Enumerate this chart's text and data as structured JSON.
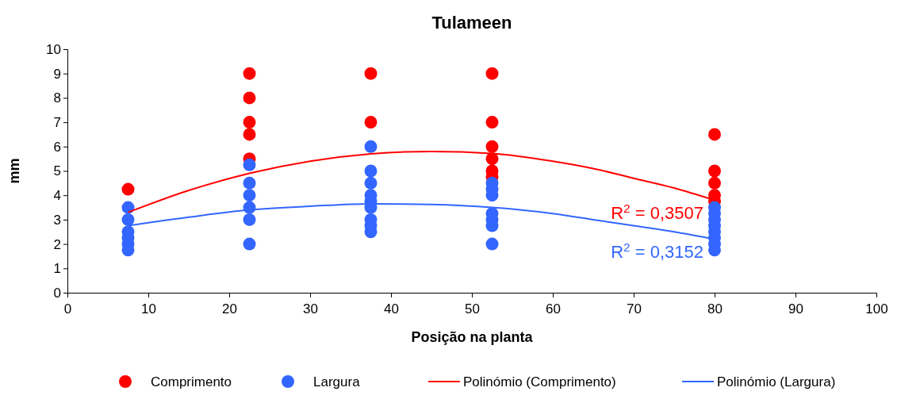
{
  "chart_data": {
    "type": "scatter",
    "title": "Tulameen",
    "xlabel": "Posição na planta",
    "ylabel": "mm",
    "xlim": [
      0,
      100
    ],
    "xticks": [
      0,
      10,
      20,
      30,
      40,
      50,
      60,
      70,
      80,
      90,
      100
    ],
    "ylim": [
      0,
      10
    ],
    "yticks": [
      0,
      1,
      2,
      3,
      4,
      5,
      6,
      7,
      8,
      9,
      10
    ],
    "legend": "bottom",
    "marker": "circle",
    "grid": false,
    "series": [
      {
        "name": "Comprimento",
        "color": "#ff0000",
        "x": [
          7.5,
          22.5,
          22.5,
          22.5,
          22.5,
          22.5,
          37.5,
          37.5,
          52.5,
          52.5,
          52.5,
          52.5,
          52.5,
          52.5,
          80,
          80,
          80,
          80,
          80
        ],
        "values": [
          4.25,
          9,
          8,
          7,
          6.5,
          5.5,
          9,
          7,
          9,
          7,
          6,
          5.5,
          5,
          4.75,
          6.5,
          5,
          4.5,
          4,
          3.75
        ]
      },
      {
        "name": "Largura",
        "color": "#3366ff",
        "x": [
          7.5,
          7.5,
          7.5,
          7.5,
          7.5,
          7.5,
          22.5,
          22.5,
          22.5,
          22.5,
          22.5,
          22.5,
          37.5,
          37.5,
          37.5,
          37.5,
          37.5,
          37.5,
          37.5,
          37.5,
          37.5,
          52.5,
          52.5,
          52.5,
          52.5,
          52.5,
          52.5,
          52.5,
          80,
          80,
          80,
          80,
          80,
          80,
          80,
          80
        ],
        "values": [
          3.5,
          3,
          2.5,
          2.25,
          2,
          1.75,
          5.25,
          4.5,
          4,
          3.5,
          3,
          2,
          6,
          5,
          4.5,
          4,
          3.75,
          3.5,
          3,
          2.75,
          2.5,
          4.5,
          4.25,
          4,
          3.25,
          3,
          2.75,
          2,
          3.5,
          3.25,
          3,
          2.75,
          2.5,
          2.25,
          2,
          1.75
        ]
      },
      {
        "name": "Polinómio (Comprimento)",
        "type": "line",
        "marker": "none",
        "color": "#ff0000",
        "x": [
          7.5,
          15,
          22.5,
          30,
          37.5,
          45,
          52.5,
          60,
          65,
          70,
          75,
          80
        ],
        "values": [
          3.3,
          4.2,
          4.9,
          5.4,
          5.7,
          5.8,
          5.72,
          5.4,
          5.1,
          4.7,
          4.3,
          3.8
        ]
      },
      {
        "name": "Polinómio (Largura)",
        "type": "line",
        "marker": "none",
        "color": "#3366ff",
        "x": [
          7.5,
          15,
          22.5,
          30,
          37.5,
          45,
          52.5,
          60,
          65,
          70,
          75,
          80
        ],
        "values": [
          2.75,
          3.1,
          3.4,
          3.55,
          3.65,
          3.62,
          3.5,
          3.25,
          3.0,
          2.75,
          2.5,
          2.2
        ]
      }
    ],
    "annotations": [
      {
        "text": "R$^{2}$ = 0,3507",
        "x": 80,
        "y": 3.8
      },
      {
        "text": "R$^{2}$ = 0,3152",
        "x": 80,
        "y": 2.2
      }
    ]
  }
}
